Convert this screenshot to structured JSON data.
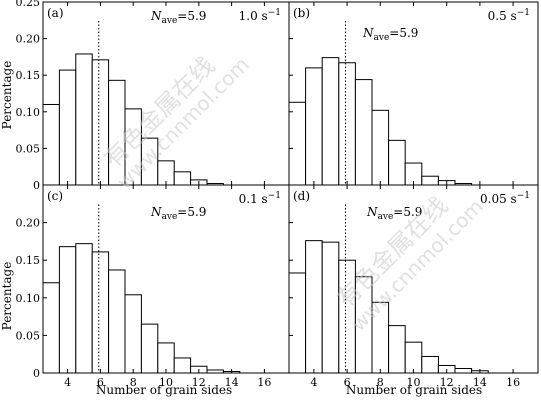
{
  "figure": {
    "xlabel": "Number of grain sides",
    "ylabel": "Percentage",
    "watermark": [
      "有色金属在线",
      "www.cnnmol.com"
    ]
  },
  "chart_data": [
    {
      "type": "bar",
      "panel": "(a)",
      "rate_label": "1.0 s",
      "rate_exponent": "−1",
      "nave_symbol": "N",
      "nave_subscript": "ave",
      "nave_value": "=5.9",
      "nave_line_x": 5.9,
      "categories": [
        3,
        4,
        5,
        6,
        7,
        8,
        9,
        10,
        11,
        12,
        13,
        14
      ],
      "values": [
        0.11,
        0.157,
        0.179,
        0.171,
        0.143,
        0.104,
        0.064,
        0.033,
        0.018,
        0.007,
        0.002,
        0.0
      ],
      "xlim": [
        2.5,
        17.5
      ],
      "xticks": [
        4,
        6,
        8,
        10,
        12,
        14,
        16
      ],
      "ylim": [
        0,
        0.25
      ],
      "yticks": [
        "0",
        "0.05",
        "0.10",
        "0.15",
        "0.20",
        "0.25"
      ],
      "grid": false
    },
    {
      "type": "bar",
      "panel": "(b)",
      "rate_label": "0.5 s",
      "rate_exponent": "−1",
      "nave_symbol": "N",
      "nave_subscript": "ave",
      "nave_value": "=5.9",
      "nave_line_x": 5.9,
      "categories": [
        3,
        4,
        5,
        6,
        7,
        8,
        9,
        10,
        11,
        12,
        13,
        14
      ],
      "values": [
        0.113,
        0.16,
        0.174,
        0.167,
        0.144,
        0.102,
        0.061,
        0.03,
        0.012,
        0.006,
        0.002,
        0.0
      ],
      "xlim": [
        2.5,
        17.5
      ],
      "xticks": [
        4,
        6,
        8,
        10,
        12,
        14,
        16
      ],
      "ylim": [
        0,
        0.25
      ],
      "yticks": [],
      "grid": false
    },
    {
      "type": "bar",
      "panel": "(c)",
      "rate_label": "0.1 s",
      "rate_exponent": "−1",
      "nave_symbol": "N",
      "nave_subscript": "ave",
      "nave_value": "=5.9",
      "nave_line_x": 5.9,
      "categories": [
        3,
        4,
        5,
        6,
        7,
        8,
        9,
        10,
        11,
        12,
        13,
        14
      ],
      "values": [
        0.12,
        0.168,
        0.172,
        0.161,
        0.137,
        0.104,
        0.065,
        0.04,
        0.02,
        0.009,
        0.004,
        0.002
      ],
      "xlim": [
        2.5,
        17.5
      ],
      "xticks": [
        4,
        6,
        8,
        10,
        12,
        14,
        16
      ],
      "ylim": [
        0,
        0.25
      ],
      "yticks": [
        "0",
        "0.05",
        "0.10",
        "0.15",
        "0.20"
      ],
      "grid": false
    },
    {
      "type": "bar",
      "panel": "(d)",
      "rate_label": "0.05 s",
      "rate_exponent": "−1",
      "nave_symbol": "N",
      "nave_subscript": "ave",
      "nave_value": "=5.9",
      "nave_line_x": 5.9,
      "categories": [
        3,
        4,
        5,
        6,
        7,
        8,
        9,
        10,
        11,
        12,
        13,
        14
      ],
      "values": [
        0.133,
        0.176,
        0.174,
        0.15,
        0.128,
        0.094,
        0.063,
        0.041,
        0.022,
        0.01,
        0.006,
        0.003
      ],
      "xlim": [
        2.5,
        17.5
      ],
      "xticks": [
        4,
        6,
        8,
        10,
        12,
        14,
        16
      ],
      "ylim": [
        0,
        0.25
      ],
      "yticks": [],
      "grid": false
    }
  ]
}
